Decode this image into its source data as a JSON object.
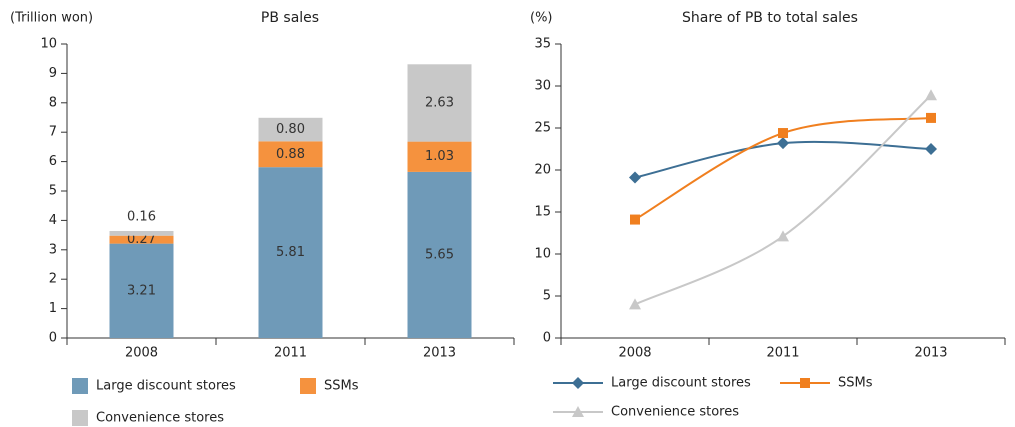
{
  "chart_data": [
    {
      "type": "bar",
      "stacked": true,
      "title": "PB sales",
      "y_label": "(Trillion won)",
      "categories": [
        "2008",
        "2011",
        "2013"
      ],
      "ylim": [
        0,
        10
      ],
      "yticks": [
        0,
        1,
        2,
        3,
        4,
        5,
        6,
        7,
        8,
        9,
        10
      ],
      "series": [
        {
          "name": "Large discount stores",
          "color": "#6f9ab8",
          "values": [
            3.21,
            5.81,
            5.65
          ],
          "value_labels": [
            "3.21",
            "5.81",
            "5.65"
          ]
        },
        {
          "name": "SSMs",
          "color": "#f5923e",
          "values": [
            0.27,
            0.88,
            1.03
          ],
          "value_labels": [
            "0.27",
            "0.88",
            "1.03"
          ]
        },
        {
          "name": "Convenience stores",
          "color": "#c8c8c8",
          "values": [
            0.16,
            0.8,
            2.63
          ],
          "value_labels": [
            "0.16",
            "0.80",
            "2.63"
          ]
        }
      ]
    },
    {
      "type": "line",
      "smooth": true,
      "title": "Share of PB to total sales",
      "y_label": "(%)",
      "categories": [
        "2008",
        "2011",
        "2013"
      ],
      "ylim": [
        0,
        35
      ],
      "yticks": [
        0,
        5,
        10,
        15,
        20,
        25,
        30,
        35
      ],
      "series": [
        {
          "name": "Large discount stores",
          "color": "#3d6f94",
          "marker": "diamond",
          "values": [
            19.1,
            23.2,
            22.5
          ]
        },
        {
          "name": "SSMs",
          "color": "#f07f1f",
          "marker": "square",
          "values": [
            14.1,
            24.4,
            26.2
          ]
        },
        {
          "name": "Convenience stores",
          "color": "#c8c8c8",
          "marker": "triangle",
          "values": [
            4.0,
            12.1,
            28.9
          ]
        }
      ]
    }
  ]
}
